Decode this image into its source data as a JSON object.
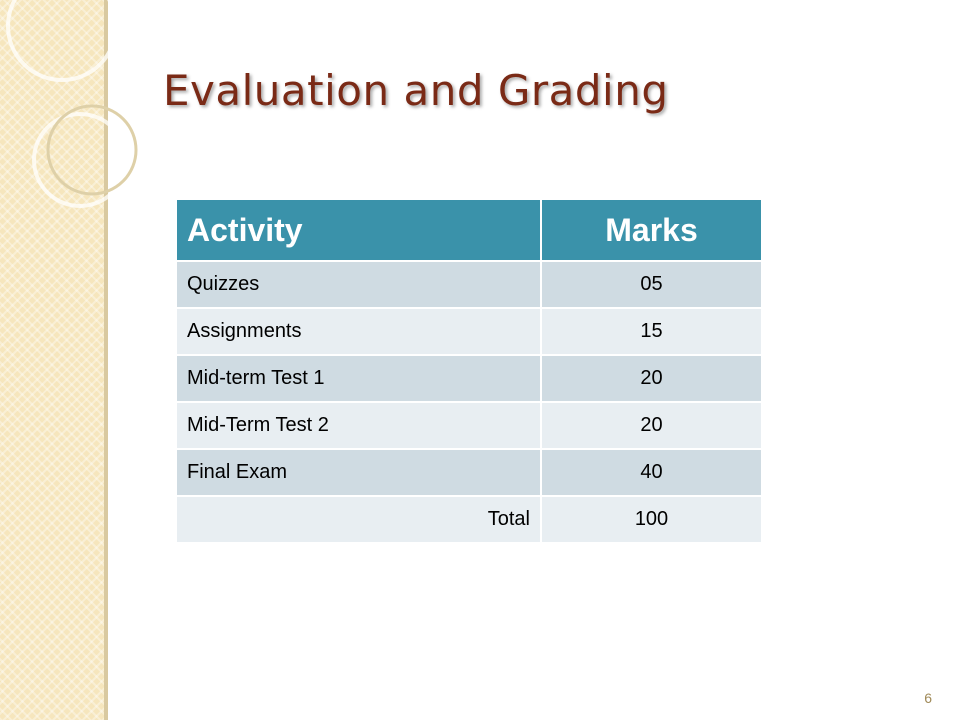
{
  "slide": {
    "title": "Evaluation and Grading",
    "page_number": "6"
  },
  "table": {
    "headers": [
      "Activity",
      "Marks"
    ],
    "rows": [
      {
        "activity": "Quizzes",
        "marks": "05"
      },
      {
        "activity": "Assignments",
        "marks": "15"
      },
      {
        "activity": "Mid-term Test 1",
        "marks": "20"
      },
      {
        "activity": "Mid-Term Test 2",
        "marks": "20"
      },
      {
        "activity": "Final Exam",
        "marks": "40"
      }
    ],
    "total": {
      "label": "Total",
      "marks": "100"
    }
  },
  "colors": {
    "title": "#7a2a16",
    "header_bg": "#3a92aa",
    "row_band_1": "#cfdbe2",
    "row_band_2": "#e8eef2",
    "side_strip": "#f6e6bd"
  }
}
